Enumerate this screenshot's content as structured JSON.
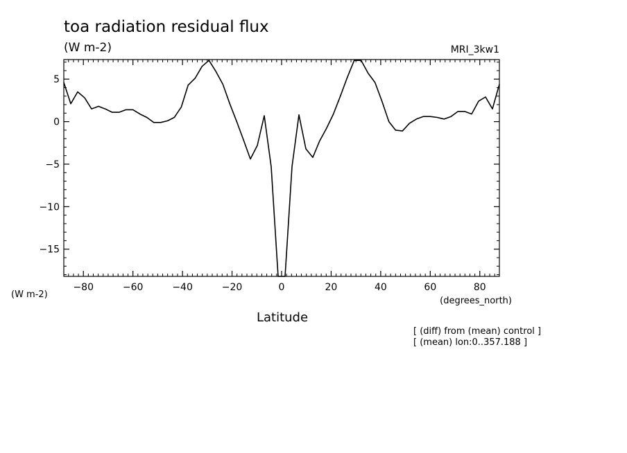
{
  "chart_data": {
    "type": "line",
    "title": "toa radiation residual flux",
    "subtitle": "(W m-2)",
    "model_label": "MRI_3kw1",
    "ylabel": "(W m-2)",
    "xlabel": "Latitude",
    "xunits": "(degrees_north)",
    "notes": [
      "[ (diff) from (mean) control ]",
      "[ (mean) lon:0..357.188 ]"
    ],
    "xlim": [
      -87.9,
      87.9
    ],
    "ylim": [
      -18.2,
      7.3
    ],
    "xticks": [
      -80,
      -60,
      -40,
      -20,
      0,
      20,
      40,
      60,
      80
    ],
    "yticks": [
      5,
      0,
      -5,
      -10,
      -15
    ],
    "xtick_labels": [
      "-80",
      "-60",
      "-40",
      "-20",
      "0",
      "20",
      "40",
      "60",
      "80"
    ],
    "ytick_labels": [
      "5",
      "0",
      "-5",
      "-10",
      "-15"
    ],
    "grid": false,
    "series": [
      {
        "x": [
          -87.9,
          -85.1,
          -82.3,
          -79.5,
          -76.7,
          -73.9,
          -71.2,
          -68.4,
          -65.6,
          -62.8,
          -60.0,
          -57.2,
          -54.4,
          -51.6,
          -48.8,
          -46.0,
          -43.3,
          -40.5,
          -37.7,
          -34.9,
          -32.1,
          -29.3,
          -26.5,
          -23.7,
          -20.9,
          -18.1,
          -15.3,
          -12.6,
          -9.8,
          -7.0,
          -4.2,
          -1.4,
          1.4,
          4.2,
          7.0,
          9.8,
          12.6,
          15.3,
          18.1,
          20.9,
          23.7,
          26.5,
          29.3,
          32.1,
          34.9,
          37.7,
          40.5,
          43.3,
          46.0,
          48.8,
          51.6,
          54.4,
          57.2,
          60.0,
          62.8,
          65.6,
          68.4,
          71.2,
          73.9,
          76.7,
          79.5,
          82.3,
          85.1,
          87.9
        ],
        "y": [
          4.6,
          2.1,
          3.5,
          2.8,
          1.5,
          1.8,
          1.5,
          1.1,
          1.1,
          1.4,
          1.4,
          0.9,
          0.5,
          -0.1,
          -0.1,
          0.1,
          0.5,
          1.7,
          4.3,
          5.1,
          6.5,
          7.2,
          5.9,
          4.4,
          2.1,
          0.0,
          -2.2,
          -4.4,
          -2.8,
          0.7,
          -5.3,
          -18.2,
          -18.2,
          -5.3,
          0.8,
          -3.2,
          -4.2,
          -2.3,
          -0.8,
          0.9,
          3.0,
          5.2,
          7.2,
          7.2,
          5.7,
          4.6,
          2.4,
          0.0,
          -1.0,
          -1.1,
          -0.2,
          0.3,
          0.6,
          0.6,
          0.5,
          0.3,
          0.6,
          1.2,
          1.2,
          0.9,
          2.4,
          2.9,
          1.5,
          4.4
        ]
      }
    ]
  }
}
